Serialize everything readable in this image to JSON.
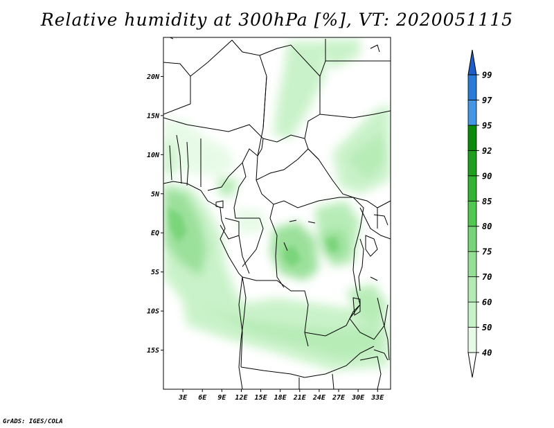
{
  "title": "Relative humidity at 300hPa [%], VT: 2020051115",
  "credit": "GrADS: IGES/COLA",
  "map": {
    "lat_ticks": [
      "20N",
      "15N",
      "10N",
      "5N",
      "EQ",
      "5S",
      "10S",
      "15S"
    ],
    "lat_values": [
      20,
      15,
      10,
      5,
      0,
      -5,
      -10,
      -15
    ],
    "lon_ticks": [
      "3E",
      "6E",
      "9E",
      "12E",
      "15E",
      "18E",
      "21E",
      "24E",
      "27E",
      "30E",
      "33E"
    ],
    "lon_values": [
      3,
      6,
      9,
      12,
      15,
      18,
      21,
      24,
      27,
      30,
      33
    ],
    "lon_range": [
      0,
      35
    ],
    "lat_range": [
      -20,
      25
    ]
  },
  "colorbar": {
    "levels": [
      "40",
      "50",
      "60",
      "70",
      "75",
      "80",
      "85",
      "90",
      "92",
      "95",
      "97",
      "99"
    ],
    "colors": [
      "#ffffff",
      "#e6fae6",
      "#c8f2c8",
      "#b4ebb4",
      "#96df96",
      "#78d478",
      "#50c850",
      "#32b432",
      "#1ea01e",
      "#0a8c0a",
      "#4696e6",
      "#2a7ad8",
      "#1e5ec8"
    ]
  }
}
